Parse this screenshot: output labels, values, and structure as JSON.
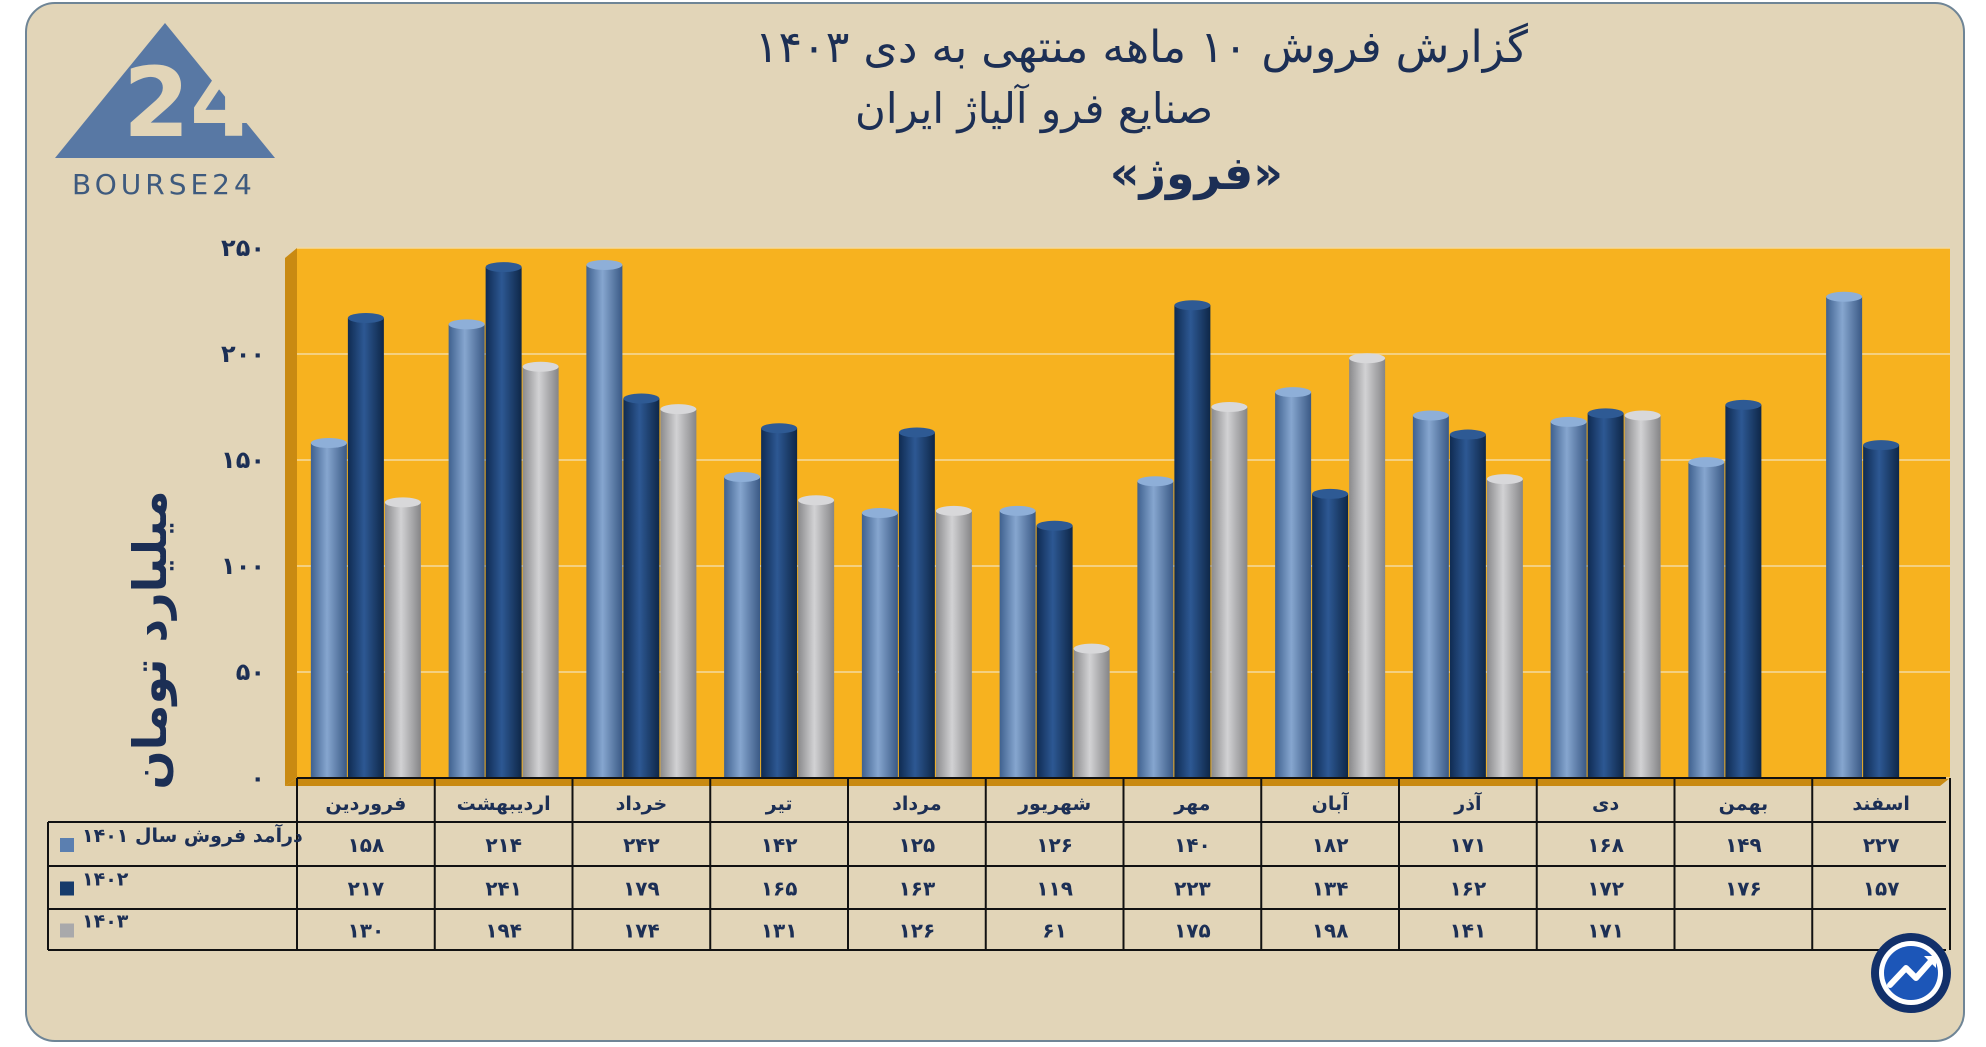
{
  "header": {
    "title_line1": "گزارش  فروش ۱۰ ماهه منتهی به دی ۱۴۰۳",
    "title_line2": "صنایع فرو آلیاژ ایران",
    "title_line3": "«فروژ»",
    "logo_text": "BOURSE24"
  },
  "colors": {
    "plot_bg": "#f7b21f",
    "series_1401": "#5b7fb0",
    "series_1402": "#163b6b",
    "series_1403": "#a9a9ab",
    "text": "#1c2f55"
  },
  "chart_data": {
    "type": "bar",
    "title": "گزارش  فروش ۱۰ ماهه منتهی به دی ۱۴۰۳ - صنایع فرو آلیاژ ایران «فروژ»",
    "ylabel": "میلیارد تومان",
    "xlabel": "",
    "ylim": [
      0,
      250
    ],
    "yticks": [
      0,
      50,
      100,
      150,
      200,
      250
    ],
    "ytick_labels": [
      "۰",
      "۵۰",
      "۱۰۰",
      "۱۵۰",
      "۲۰۰",
      "۲۵۰"
    ],
    "grid": true,
    "categories": [
      "فروردین",
      "اردیبهشت",
      "خرداد",
      "تیر",
      "مرداد",
      "شهریور",
      "مهر",
      "آبان",
      "آذر",
      "دی",
      "بهمن",
      "اسفند"
    ],
    "series": [
      {
        "name": "درآمد فروش سال ۱۴۰۱",
        "values": [
          158,
          214,
          242,
          142,
          125,
          126,
          140,
          182,
          171,
          168,
          149,
          227
        ],
        "labels": [
          "۱۵۸",
          "۲۱۴",
          "۲۴۲",
          "۱۴۲",
          "۱۲۵",
          "۱۲۶",
          "۱۴۰",
          "۱۸۲",
          "۱۷۱",
          "۱۶۸",
          "۱۴۹",
          "۲۲۷"
        ]
      },
      {
        "name": "۱۴۰۲",
        "values": [
          217,
          241,
          179,
          165,
          163,
          119,
          223,
          134,
          162,
          172,
          176,
          157
        ],
        "labels": [
          "۲۱۷",
          "۲۴۱",
          "۱۷۹",
          "۱۶۵",
          "۱۶۳",
          "۱۱۹",
          "۲۲۳",
          "۱۳۴",
          "۱۶۲",
          "۱۷۲",
          "۱۷۶",
          "۱۵۷"
        ]
      },
      {
        "name": "۱۴۰۳",
        "values": [
          130,
          194,
          174,
          131,
          126,
          61,
          175,
          198,
          141,
          171,
          null,
          null
        ],
        "labels": [
          "۱۳۰",
          "۱۹۴",
          "۱۷۴",
          "۱۳۱",
          "۱۲۶",
          "۶۱",
          "۱۷۵",
          "۱۹۸",
          "۱۴۱",
          "۱۷۱",
          "",
          ""
        ]
      }
    ]
  }
}
